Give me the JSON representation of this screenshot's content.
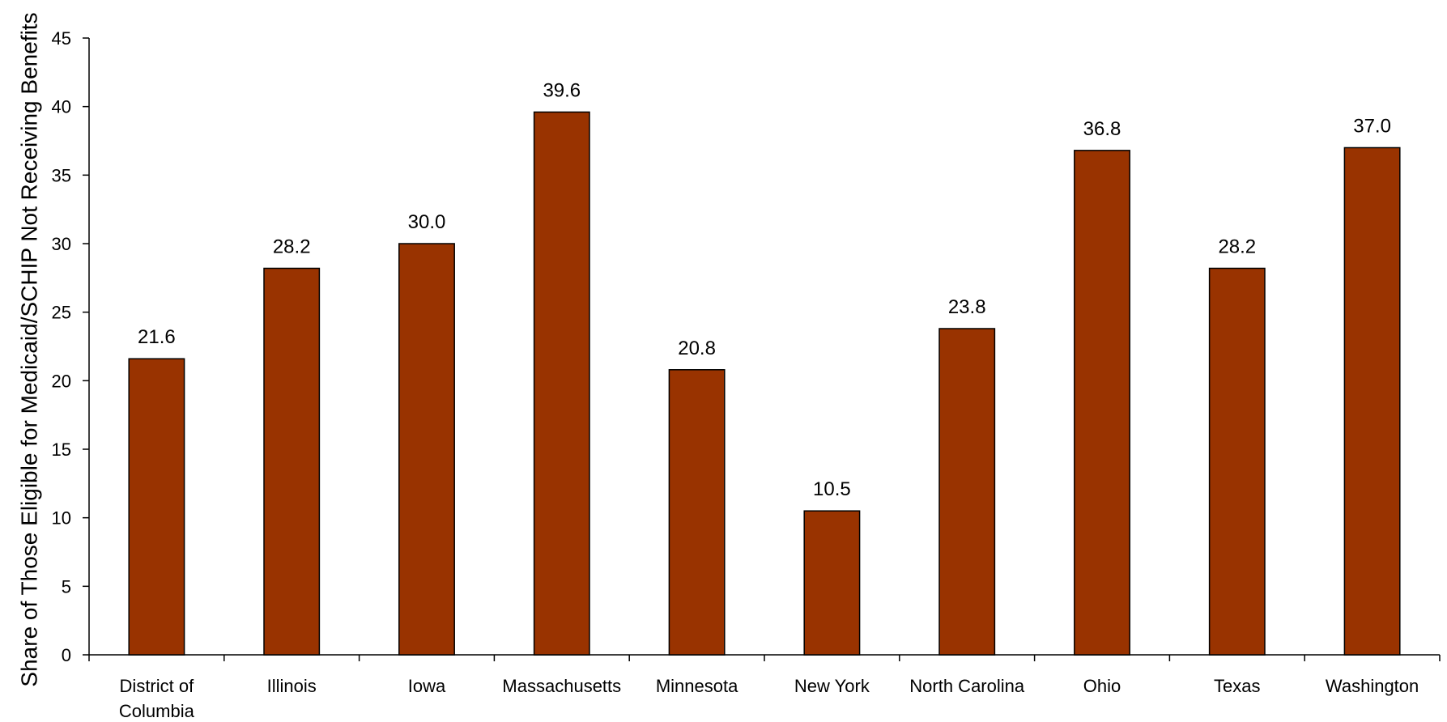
{
  "chart_data": {
    "type": "bar",
    "title": "",
    "xlabel": "",
    "ylabel": "Share of Those Eligible for Medicaid/SCHIP Not Receiving Benefits",
    "categories": [
      "District of Columbia",
      "Illinois",
      "Iowa",
      "Massachusetts",
      "Minnesota",
      "New York",
      "North Carolina",
      "Ohio",
      "Texas",
      "Washington"
    ],
    "values": [
      21.6,
      28.2,
      30.0,
      39.6,
      20.8,
      10.5,
      23.8,
      36.8,
      28.2,
      37.0
    ],
    "value_labels": [
      "21.6",
      "28.2",
      "30.0",
      "39.6",
      "20.8",
      "10.5",
      "23.8",
      "36.8",
      "28.2",
      "37.0"
    ],
    "ylim": [
      0,
      45
    ],
    "yticks": [
      "0",
      "5",
      "10",
      "15",
      "20",
      "25",
      "30",
      "35",
      "40",
      "45"
    ],
    "grid": false,
    "legend": "none",
    "bar_color": "#993300"
  }
}
